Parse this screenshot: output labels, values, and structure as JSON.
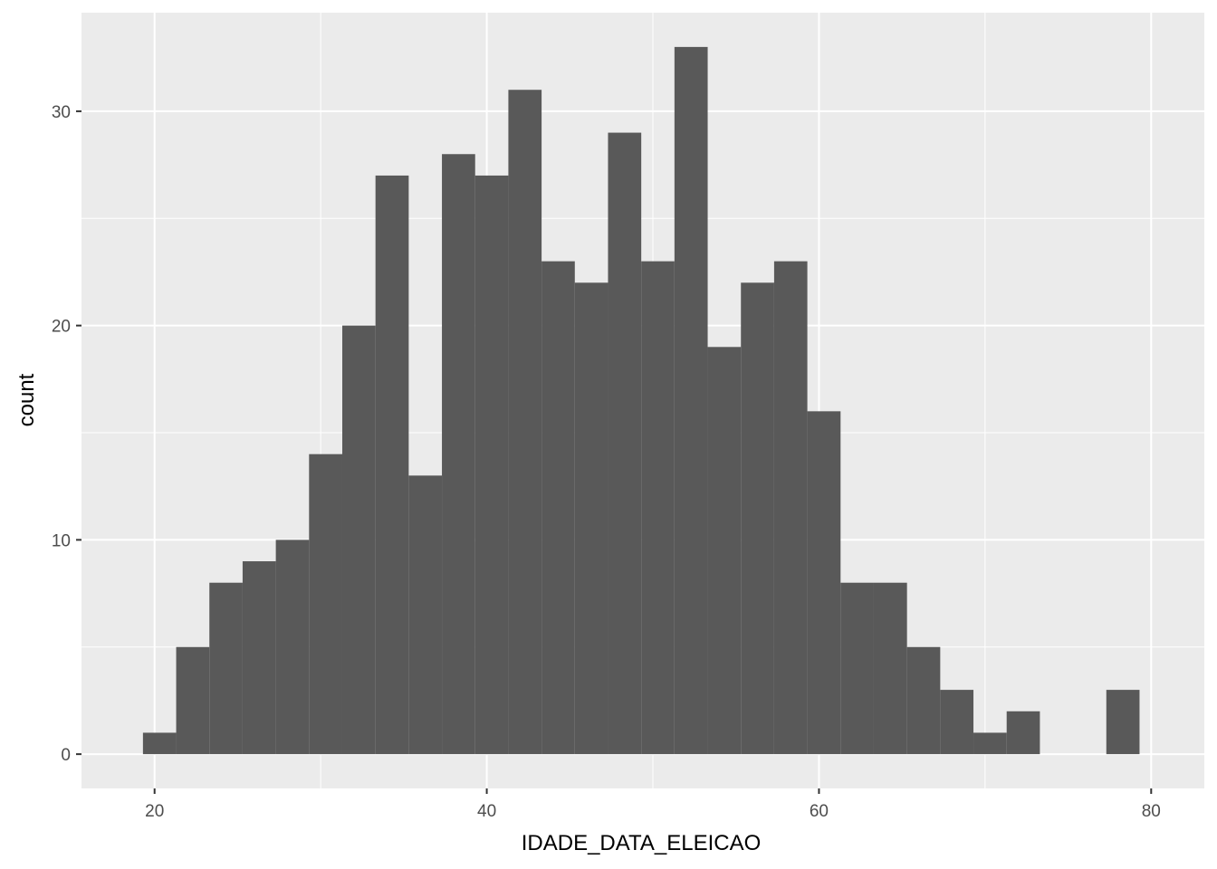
{
  "chart_data": {
    "type": "bar",
    "title": "",
    "xlabel": "IDADE_DATA_ELEICAO",
    "ylabel": "count",
    "bin_edges": [
      19.3,
      21.3,
      23.3,
      25.3,
      27.3,
      29.3,
      31.3,
      33.3,
      35.3,
      37.3,
      39.3,
      41.3,
      43.3,
      45.3,
      47.3,
      49.3,
      51.3,
      53.3,
      55.3,
      57.3,
      59.3,
      61.3,
      63.3,
      65.3,
      67.3,
      69.3,
      71.3,
      73.3,
      75.3,
      77.3,
      79.3
    ],
    "counts": [
      1,
      5,
      8,
      9,
      10,
      14,
      20,
      27,
      13,
      28,
      27,
      31,
      23,
      22,
      29,
      23,
      33,
      19,
      22,
      23,
      16,
      8,
      8,
      5,
      3,
      1,
      2,
      0,
      0,
      3
    ],
    "xlim": [
      15.6,
      83.2
    ],
    "ylim": [
      -1.6,
      34.6
    ],
    "x_ticks": [
      20,
      40,
      60,
      80
    ],
    "x_tick_labels": [
      "20",
      "40",
      "60",
      "80"
    ],
    "y_ticks": [
      0,
      10,
      20,
      30
    ],
    "y_tick_labels": [
      "0",
      "10",
      "20",
      "30"
    ],
    "grid": true,
    "colors": {
      "panel_background": "#ebebeb",
      "grid_major": "#ffffff",
      "bar_fill": "#595959",
      "tick_label": "#4d4d4d",
      "tick_mark": "#333333",
      "axis_title": "#000000"
    }
  }
}
